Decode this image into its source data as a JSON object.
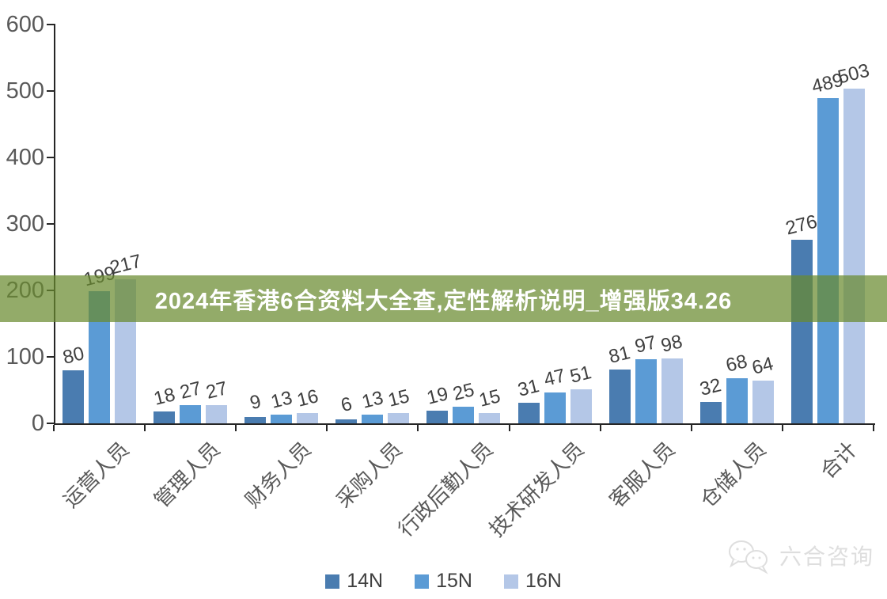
{
  "banner": {
    "text": "2024年香港6合资料大全查,定性解析说明_增强版34.26",
    "bg_color": "rgba(106,139,47,0.72)",
    "text_color": "#ffffff"
  },
  "chart_data": {
    "type": "bar",
    "title": "",
    "xlabel": "",
    "ylabel": "",
    "categories": [
      "运营人员",
      "管理人员",
      "财务人员",
      "采购人员",
      "行政后勤人员",
      "技术研发人员",
      "客服人员",
      "仓储人员",
      "合计"
    ],
    "series": [
      {
        "name": "14N",
        "color": "#4A7CB0",
        "values": [
          80,
          18,
          9,
          6,
          19,
          31,
          81,
          32,
          276
        ]
      },
      {
        "name": "15N",
        "color": "#5B9BD5",
        "values": [
          199,
          27,
          13,
          13,
          25,
          47,
          97,
          68,
          489
        ]
      },
      {
        "name": "16N",
        "color": "#B4C7E7",
        "values": [
          217,
          27,
          16,
          15,
          15,
          51,
          98,
          64,
          503
        ]
      }
    ],
    "ylim": [
      0,
      600
    ],
    "yticks": [
      0,
      100,
      200,
      300,
      400,
      500,
      600
    ],
    "grid": false,
    "legend_position": "bottom",
    "axis_color": "#262626",
    "tick_label_color": "#595959",
    "data_label_color": "#3f3f3f"
  },
  "watermark": {
    "text": "六合咨询"
  }
}
